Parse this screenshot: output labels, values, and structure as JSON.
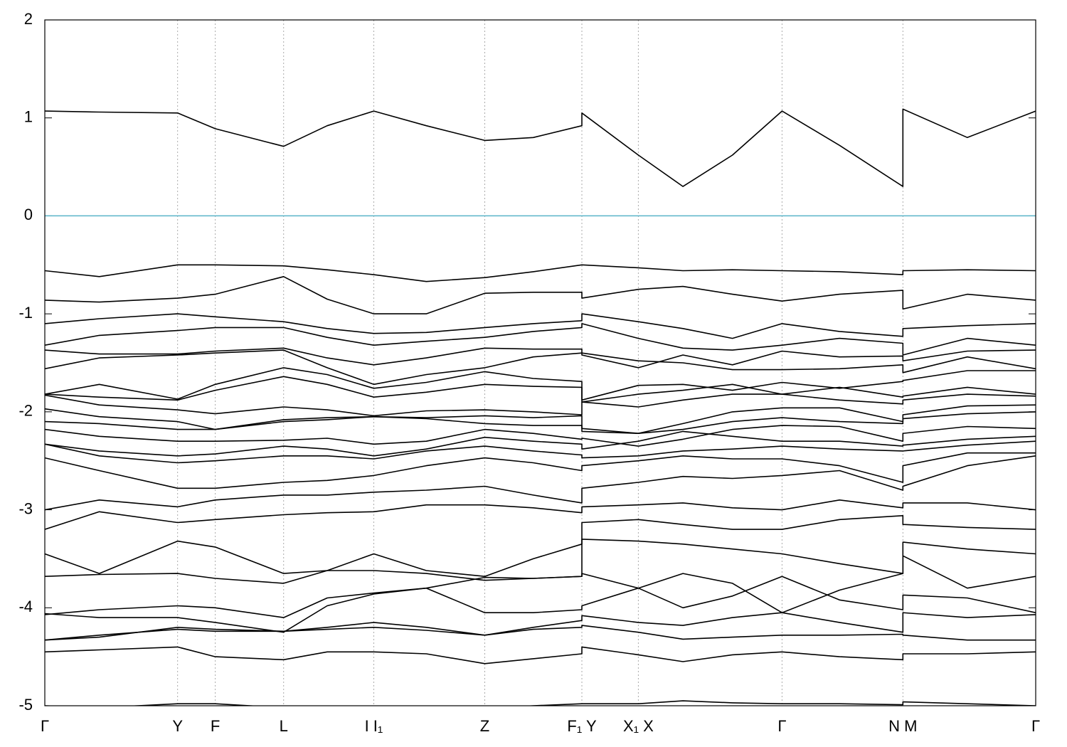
{
  "chart_data": {
    "type": "line",
    "x": [
      0,
      0.055,
      0.134,
      0.172,
      0.241,
      0.285,
      0.332,
      0.385,
      0.444,
      0.493,
      0.542,
      0.542,
      0.599,
      0.644,
      0.694,
      0.744,
      0.802,
      0.866,
      0.866,
      0.931,
      1
    ],
    "xlim": [
      0,
      1
    ],
    "xticks": [
      {
        "value": 0,
        "label": "Γ"
      },
      {
        "value": 0.134,
        "label": "Y"
      },
      {
        "value": 0.172,
        "label": "F"
      },
      {
        "value": 0.241,
        "label": "L"
      },
      {
        "value": 0.332,
        "label": "I I₁"
      },
      {
        "value": 0.444,
        "label": "Z"
      },
      {
        "value": 0.542,
        "label": "F₁ Y"
      },
      {
        "value": 0.599,
        "label": "X₁ X"
      },
      {
        "value": 0.744,
        "label": "Γ"
      },
      {
        "value": 0.866,
        "label": "N M"
      },
      {
        "value": 1,
        "label": "Γ"
      }
    ],
    "ylim": [
      -5,
      2
    ],
    "yticks": [
      -5,
      -4,
      -3,
      -2,
      -1,
      0,
      1,
      2
    ],
    "grid": true,
    "fermi_level": 0,
    "fermi_color": "#5ab4c8",
    "series": [
      {
        "color": "#000000",
        "values": [
          1.07,
          1.06,
          1.05,
          0.89,
          0.71,
          0.92,
          1.07,
          0.92,
          0.77,
          0.8,
          0.92,
          1.05,
          0.62,
          0.3,
          0.62,
          1.07,
          0.72,
          0.3,
          1.09,
          0.8,
          1.07
        ]
      },
      {
        "color": "#000000",
        "values": [
          -0.56,
          -0.62,
          -0.5,
          -0.5,
          -0.51,
          -0.55,
          -0.6,
          -0.67,
          -0.63,
          -0.57,
          -0.5,
          -0.5,
          -0.53,
          -0.56,
          -0.55,
          -0.56,
          -0.57,
          -0.6,
          -0.56,
          -0.55,
          -0.56
        ]
      },
      {
        "color": "#000000",
        "values": [
          -0.86,
          -0.88,
          -0.84,
          -0.8,
          -0.62,
          -0.85,
          -1.0,
          -1.0,
          -0.79,
          -0.78,
          -0.78,
          -0.84,
          -0.75,
          -0.72,
          -0.8,
          -0.87,
          -0.8,
          -0.76,
          -0.95,
          -0.8,
          -0.86
        ]
      },
      {
        "color": "#000000",
        "values": [
          -1.1,
          -1.05,
          -1.0,
          -1.03,
          -1.08,
          -1.15,
          -1.2,
          -1.19,
          -1.14,
          -1.1,
          -1.07,
          -1.0,
          -1.08,
          -1.15,
          -1.25,
          -1.1,
          -1.18,
          -1.23,
          -1.15,
          -1.12,
          -1.1
        ]
      },
      {
        "color": "#000000",
        "values": [
          -1.32,
          -1.22,
          -1.17,
          -1.14,
          -1.14,
          -1.24,
          -1.32,
          -1.28,
          -1.24,
          -1.18,
          -1.14,
          -1.1,
          -1.25,
          -1.35,
          -1.37,
          -1.32,
          -1.25,
          -1.3,
          -1.42,
          -1.25,
          -1.32
        ]
      },
      {
        "color": "#000000",
        "values": [
          -1.37,
          -1.41,
          -1.41,
          -1.38,
          -1.35,
          -1.45,
          -1.52,
          -1.45,
          -1.35,
          -1.36,
          -1.36,
          -1.42,
          -1.55,
          -1.42,
          -1.52,
          -1.38,
          -1.44,
          -1.43,
          -1.48,
          -1.38,
          -1.37
        ]
      },
      {
        "color": "#000000",
        "values": [
          -1.56,
          -1.45,
          -1.42,
          -1.4,
          -1.37,
          -1.55,
          -1.72,
          -1.62,
          -1.55,
          -1.44,
          -1.4,
          -1.4,
          -1.48,
          -1.5,
          -1.57,
          -1.57,
          -1.56,
          -1.52,
          -1.6,
          -1.44,
          -1.56
        ]
      },
      {
        "color": "#000000",
        "values": [
          -1.82,
          -1.72,
          -1.87,
          -1.72,
          -1.55,
          -1.62,
          -1.76,
          -1.7,
          -1.59,
          -1.66,
          -1.69,
          -1.88,
          -1.73,
          -1.72,
          -1.78,
          -1.7,
          -1.76,
          -1.69,
          -1.68,
          -1.58,
          -1.58
        ]
      },
      {
        "color": "#000000",
        "values": [
          -1.82,
          -1.85,
          -1.88,
          -1.78,
          -1.64,
          -1.72,
          -1.85,
          -1.8,
          -1.72,
          -1.74,
          -1.75,
          -1.9,
          -1.82,
          -1.78,
          -1.72,
          -1.82,
          -1.75,
          -1.85,
          -1.84,
          -1.75,
          -1.82
        ]
      },
      {
        "color": "#000000",
        "values": [
          -1.83,
          -1.93,
          -1.98,
          -2.02,
          -1.95,
          -1.98,
          -2.04,
          -1.99,
          -1.98,
          -2.0,
          -2.03,
          -1.9,
          -1.95,
          -1.88,
          -1.82,
          -1.82,
          -1.88,
          -1.92,
          -1.88,
          -1.82,
          -1.84
        ]
      },
      {
        "color": "#000000",
        "values": [
          -1.97,
          -2.05,
          -2.1,
          -2.18,
          -2.1,
          -2.08,
          -2.05,
          -2.06,
          -2.04,
          -2.06,
          -2.04,
          -2.17,
          -2.22,
          -2.12,
          -2.0,
          -1.96,
          -1.96,
          -2.1,
          -2.03,
          -1.94,
          -1.93
        ]
      },
      {
        "color": "#000000",
        "values": [
          -2.1,
          -2.12,
          -2.18,
          -2.18,
          -2.08,
          -2.06,
          -2.05,
          -2.07,
          -2.12,
          -2.14,
          -2.14,
          -2.2,
          -2.22,
          -2.18,
          -2.1,
          -2.06,
          -2.1,
          -2.12,
          -2.07,
          -2.02,
          -2.0
        ]
      },
      {
        "color": "#000000",
        "values": [
          -2.18,
          -2.25,
          -2.3,
          -2.3,
          -2.29,
          -2.27,
          -2.33,
          -2.3,
          -2.18,
          -2.22,
          -2.28,
          -2.27,
          -2.35,
          -2.28,
          -2.18,
          -2.14,
          -2.15,
          -2.3,
          -2.22,
          -2.15,
          -2.17
        ]
      },
      {
        "color": "#000000",
        "values": [
          -2.33,
          -2.4,
          -2.45,
          -2.43,
          -2.35,
          -2.38,
          -2.45,
          -2.38,
          -2.26,
          -2.3,
          -2.33,
          -2.38,
          -2.3,
          -2.2,
          -2.25,
          -2.3,
          -2.3,
          -2.35,
          -2.34,
          -2.28,
          -2.25
        ]
      },
      {
        "color": "#000000",
        "values": [
          -2.33,
          -2.45,
          -2.52,
          -2.5,
          -2.45,
          -2.45,
          -2.48,
          -2.4,
          -2.35,
          -2.4,
          -2.44,
          -2.47,
          -2.45,
          -2.4,
          -2.38,
          -2.35,
          -2.38,
          -2.4,
          -2.4,
          -2.34,
          -2.3
        ]
      },
      {
        "color": "#000000",
        "values": [
          -2.47,
          -2.6,
          -2.78,
          -2.78,
          -2.72,
          -2.7,
          -2.65,
          -2.55,
          -2.47,
          -2.52,
          -2.6,
          -2.55,
          -2.5,
          -2.45,
          -2.48,
          -2.48,
          -2.55,
          -2.72,
          -2.55,
          -2.42,
          -2.42
        ]
      },
      {
        "color": "#000000",
        "values": [
          -3.0,
          -2.9,
          -2.97,
          -2.9,
          -2.85,
          -2.85,
          -2.82,
          -2.8,
          -2.76,
          -2.85,
          -2.93,
          -2.78,
          -2.72,
          -2.66,
          -2.68,
          -2.65,
          -2.6,
          -2.8,
          -2.76,
          -2.55,
          -2.45
        ]
      },
      {
        "color": "#000000",
        "values": [
          -3.2,
          -3.02,
          -3.13,
          -3.1,
          -3.05,
          -3.03,
          -3.02,
          -2.95,
          -2.95,
          -2.98,
          -3.03,
          -2.97,
          -2.95,
          -2.93,
          -2.98,
          -3.0,
          -2.9,
          -2.98,
          -2.93,
          -2.93,
          -3.0
        ]
      },
      {
        "color": "#000000",
        "values": [
          -3.45,
          -3.65,
          -3.32,
          -3.38,
          -3.65,
          -3.62,
          -3.45,
          -3.62,
          -3.68,
          -3.5,
          -3.35,
          -3.13,
          -3.1,
          -3.15,
          -3.2,
          -3.2,
          -3.1,
          -3.06,
          -3.15,
          -3.18,
          -3.2
        ]
      },
      {
        "color": "#000000",
        "values": [
          -3.68,
          -3.66,
          -3.65,
          -3.7,
          -3.75,
          -3.62,
          -3.62,
          -3.65,
          -3.72,
          -3.7,
          -3.68,
          -3.3,
          -3.32,
          -3.35,
          -3.4,
          -3.45,
          -3.55,
          -3.65,
          -3.33,
          -3.4,
          -3.45
        ]
      },
      {
        "color": "#000000",
        "values": [
          -4.07,
          -4.02,
          -3.98,
          -4.0,
          -4.1,
          -3.9,
          -3.85,
          -3.8,
          -3.69,
          -3.7,
          -3.68,
          -3.65,
          -3.8,
          -3.65,
          -3.75,
          -4.05,
          -3.82,
          -3.65,
          -3.47,
          -3.8,
          -3.68
        ]
      },
      {
        "color": "#000000",
        "values": [
          -4.06,
          -4.1,
          -4.1,
          -4.15,
          -4.25,
          -3.98,
          -3.86,
          -3.8,
          -4.05,
          -4.05,
          -4.02,
          -3.98,
          -3.8,
          -4.0,
          -3.88,
          -3.68,
          -3.92,
          -4.02,
          -3.87,
          -3.9,
          -4.05
        ]
      },
      {
        "color": "#000000",
        "values": [
          -4.33,
          -4.3,
          -4.2,
          -4.22,
          -4.24,
          -4.2,
          -4.15,
          -4.2,
          -4.28,
          -4.2,
          -4.13,
          -4.08,
          -4.15,
          -4.18,
          -4.1,
          -4.05,
          -4.15,
          -4.25,
          -4.05,
          -4.1,
          -4.07
        ]
      },
      {
        "color": "#000000",
        "values": [
          -4.33,
          -4.28,
          -4.22,
          -4.24,
          -4.24,
          -4.22,
          -4.2,
          -4.23,
          -4.28,
          -4.22,
          -4.2,
          -4.18,
          -4.25,
          -4.32,
          -4.3,
          -4.28,
          -4.28,
          -4.27,
          -4.28,
          -4.33,
          -4.33
        ]
      },
      {
        "color": "#000000",
        "values": [
          -4.45,
          -4.43,
          -4.4,
          -4.5,
          -4.53,
          -4.45,
          -4.45,
          -4.47,
          -4.57,
          -4.52,
          -4.47,
          -4.4,
          -4.48,
          -4.55,
          -4.48,
          -4.45,
          -4.5,
          -4.53,
          -4.47,
          -4.47,
          -4.45
        ]
      },
      {
        "color": "#000000",
        "values": [
          -5.0,
          -5.02,
          -4.98,
          -4.98,
          -5.02,
          -5.03,
          -5.03,
          -5.03,
          -5.03,
          -5.0,
          -4.98,
          -4.98,
          -4.98,
          -4.95,
          -4.97,
          -4.98,
          -4.98,
          -4.99,
          -4.96,
          -4.98,
          -5.0
        ]
      }
    ]
  }
}
